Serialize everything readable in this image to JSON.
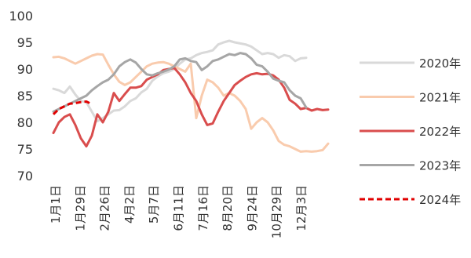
{
  "chart_data": {
    "type": "line",
    "title": "",
    "xlabel": "",
    "ylabel": "",
    "ylim": [
      70,
      100
    ],
    "yticks": [
      70,
      75,
      80,
      85,
      90,
      95,
      100
    ],
    "x_tick_labels": [
      "1月1日",
      "1月29日",
      "2月26日",
      "4月2日",
      "5月7日",
      "6月11日",
      "7月16日",
      "8月20日",
      "9月24日",
      "10月29日",
      "12月3日"
    ],
    "x_max_index": 50,
    "grid": false,
    "legend_position": "right",
    "series": [
      {
        "name": "2020年",
        "color": "#d9d9d9",
        "dash": "solid",
        "points": [
          [
            0,
            86.3
          ],
          [
            1,
            86.0
          ],
          [
            2,
            85.5
          ],
          [
            3,
            86.7
          ],
          [
            4,
            85.2
          ],
          [
            5,
            84.0
          ],
          [
            6,
            83.8
          ],
          [
            7,
            82.0
          ],
          [
            8,
            80.2
          ],
          [
            9,
            80.8
          ],
          [
            10,
            81.5
          ],
          [
            11,
            82.2
          ],
          [
            12,
            82.3
          ],
          [
            13,
            83.0
          ],
          [
            14,
            84.0
          ],
          [
            15,
            84.5
          ],
          [
            16,
            85.6
          ],
          [
            17,
            86.3
          ],
          [
            18,
            87.8
          ],
          [
            19,
            88.6
          ],
          [
            20,
            89.2
          ],
          [
            21,
            89.5
          ],
          [
            22,
            90.0
          ],
          [
            23,
            91.0
          ],
          [
            24,
            91.8
          ],
          [
            25,
            92.0
          ],
          [
            26,
            92.6
          ],
          [
            27,
            93.0
          ],
          [
            28,
            93.2
          ],
          [
            29,
            93.5
          ],
          [
            30,
            94.6
          ],
          [
            31,
            95.0
          ],
          [
            32,
            95.3
          ],
          [
            33,
            95.0
          ],
          [
            34,
            94.8
          ],
          [
            35,
            94.6
          ],
          [
            36,
            94.2
          ],
          [
            37,
            93.5
          ],
          [
            38,
            92.8
          ],
          [
            39,
            93.0
          ],
          [
            40,
            92.8
          ],
          [
            41,
            92.1
          ],
          [
            42,
            92.6
          ],
          [
            43,
            92.4
          ],
          [
            44,
            91.5
          ],
          [
            45,
            92.0
          ],
          [
            46,
            92.1
          ]
        ]
      },
      {
        "name": "2021年",
        "color": "#f9cbad",
        "dash": "solid",
        "points": [
          [
            0,
            92.2
          ],
          [
            1,
            92.3
          ],
          [
            2,
            92.0
          ],
          [
            3,
            91.5
          ],
          [
            4,
            91.0
          ],
          [
            5,
            91.5
          ],
          [
            6,
            92.0
          ],
          [
            7,
            92.5
          ],
          [
            8,
            92.8
          ],
          [
            9,
            92.7
          ],
          [
            10,
            90.8
          ],
          [
            11,
            89.0
          ],
          [
            12,
            87.6
          ],
          [
            13,
            87.0
          ],
          [
            14,
            87.5
          ],
          [
            15,
            88.5
          ],
          [
            16,
            89.5
          ],
          [
            17,
            90.5
          ],
          [
            18,
            91.0
          ],
          [
            19,
            91.2
          ],
          [
            20,
            91.3
          ],
          [
            21,
            91.0
          ],
          [
            22,
            90.5
          ],
          [
            23,
            90.0
          ],
          [
            24,
            89.5
          ],
          [
            25,
            91.0
          ],
          [
            26,
            80.8
          ],
          [
            27,
            85.0
          ],
          [
            28,
            88.0
          ],
          [
            29,
            87.5
          ],
          [
            30,
            86.5
          ],
          [
            31,
            85.0
          ],
          [
            32,
            85.5
          ],
          [
            33,
            85.0
          ],
          [
            34,
            84.0
          ],
          [
            35,
            82.5
          ],
          [
            36,
            78.8
          ],
          [
            37,
            80.0
          ],
          [
            38,
            80.8
          ],
          [
            39,
            80.0
          ],
          [
            40,
            78.5
          ],
          [
            41,
            76.5
          ],
          [
            42,
            75.8
          ],
          [
            43,
            75.5
          ],
          [
            44,
            75.0
          ],
          [
            45,
            74.5
          ],
          [
            46,
            74.6
          ],
          [
            47,
            74.5
          ],
          [
            48,
            74.6
          ],
          [
            49,
            74.8
          ],
          [
            50,
            76.0
          ]
        ]
      },
      {
        "name": "2022年",
        "color": "#d94d4d",
        "dash": "solid",
        "points": [
          [
            0,
            78.0
          ],
          [
            1,
            80.0
          ],
          [
            2,
            81.0
          ],
          [
            3,
            81.5
          ],
          [
            4,
            79.5
          ],
          [
            5,
            77.0
          ],
          [
            6,
            75.5
          ],
          [
            7,
            77.5
          ],
          [
            8,
            81.5
          ],
          [
            9,
            80.0
          ],
          [
            10,
            82.0
          ],
          [
            11,
            85.5
          ],
          [
            12,
            84.0
          ],
          [
            13,
            85.3
          ],
          [
            14,
            86.5
          ],
          [
            15,
            86.5
          ],
          [
            16,
            86.8
          ],
          [
            17,
            88.0
          ],
          [
            18,
            88.5
          ],
          [
            19,
            89.0
          ],
          [
            20,
            89.8
          ],
          [
            21,
            90.0
          ],
          [
            22,
            90.2
          ],
          [
            23,
            89.0
          ],
          [
            24,
            87.5
          ],
          [
            25,
            85.5
          ],
          [
            26,
            84.0
          ],
          [
            27,
            81.5
          ],
          [
            28,
            79.5
          ],
          [
            29,
            79.8
          ],
          [
            30,
            82.0
          ],
          [
            31,
            84.0
          ],
          [
            32,
            85.5
          ],
          [
            33,
            87.0
          ],
          [
            34,
            87.8
          ],
          [
            35,
            88.5
          ],
          [
            36,
            89.0
          ],
          [
            37,
            89.2
          ],
          [
            38,
            89.0
          ],
          [
            39,
            89.1
          ],
          [
            40,
            88.8
          ],
          [
            41,
            88.0
          ],
          [
            42,
            86.5
          ],
          [
            43,
            84.2
          ],
          [
            44,
            83.5
          ],
          [
            45,
            82.5
          ],
          [
            46,
            82.7
          ],
          [
            47,
            82.2
          ],
          [
            48,
            82.5
          ],
          [
            49,
            82.3
          ],
          [
            50,
            82.4
          ]
        ]
      },
      {
        "name": "2023年",
        "color": "#a6a6a6",
        "dash": "solid",
        "points": [
          [
            0,
            82.0
          ],
          [
            1,
            82.5
          ],
          [
            2,
            83.0
          ],
          [
            3,
            83.5
          ],
          [
            4,
            84.0
          ],
          [
            5,
            84.5
          ],
          [
            6,
            85.0
          ],
          [
            7,
            86.0
          ],
          [
            8,
            86.8
          ],
          [
            9,
            87.5
          ],
          [
            10,
            88.0
          ],
          [
            11,
            89.0
          ],
          [
            12,
            90.5
          ],
          [
            13,
            91.3
          ],
          [
            14,
            91.8
          ],
          [
            15,
            91.2
          ],
          [
            16,
            90.0
          ],
          [
            17,
            89.0
          ],
          [
            18,
            88.8
          ],
          [
            19,
            89.2
          ],
          [
            20,
            89.5
          ],
          [
            21,
            89.9
          ],
          [
            22,
            90.5
          ],
          [
            23,
            91.8
          ],
          [
            24,
            92.0
          ],
          [
            25,
            91.5
          ],
          [
            26,
            91.3
          ],
          [
            27,
            89.8
          ],
          [
            28,
            90.5
          ],
          [
            29,
            91.5
          ],
          [
            30,
            91.8
          ],
          [
            31,
            92.3
          ],
          [
            32,
            92.8
          ],
          [
            33,
            92.6
          ],
          [
            34,
            93.0
          ],
          [
            35,
            92.8
          ],
          [
            36,
            92.0
          ],
          [
            37,
            90.8
          ],
          [
            38,
            90.5
          ],
          [
            39,
            89.5
          ],
          [
            40,
            88.2
          ],
          [
            41,
            87.8
          ],
          [
            42,
            87.5
          ],
          [
            43,
            86.0
          ],
          [
            44,
            85.0
          ],
          [
            45,
            84.5
          ],
          [
            46,
            82.8
          ]
        ]
      },
      {
        "name": "2024年",
        "color": "#e00000",
        "dash": "dashed",
        "points": [
          [
            0,
            81.5
          ],
          [
            1,
            82.5
          ],
          [
            2,
            83.0
          ],
          [
            3,
            83.5
          ],
          [
            4,
            83.6
          ],
          [
            5,
            83.8
          ],
          [
            6,
            83.9
          ],
          [
            7,
            83.4
          ]
        ]
      }
    ]
  }
}
